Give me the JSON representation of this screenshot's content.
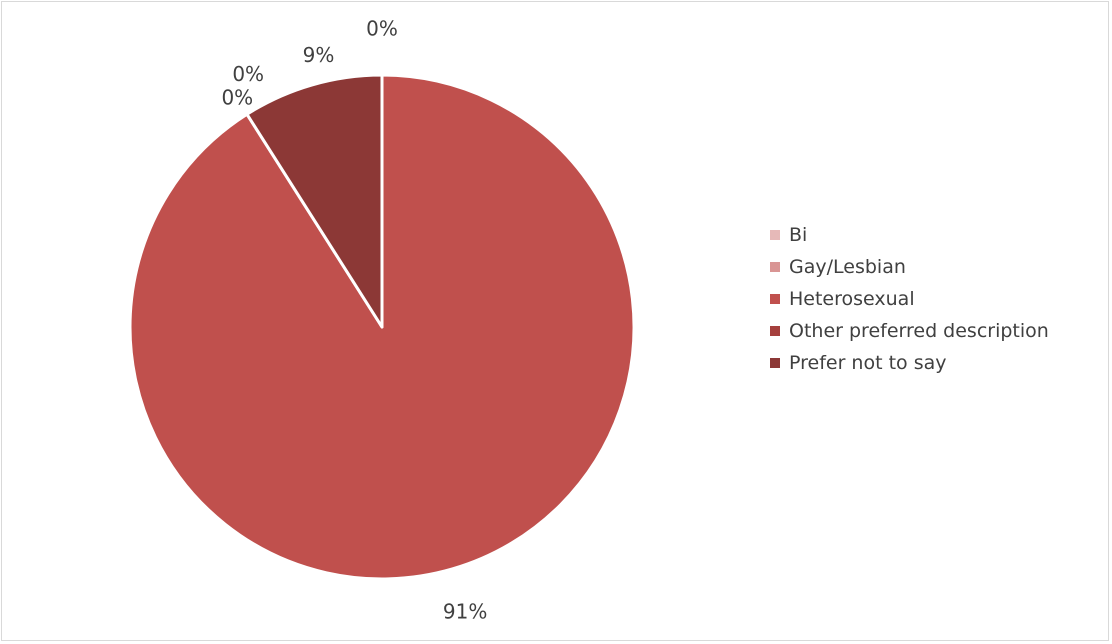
{
  "chart_data": {
    "type": "pie",
    "title": "",
    "categories": [
      "Bi",
      "Gay/Lesbian",
      "Heterosexual",
      "Other preferred description",
      "Prefer not to say"
    ],
    "values": [
      0,
      0,
      91,
      0,
      9
    ],
    "data_labels": [
      "0%",
      "0%",
      "91%",
      "0%",
      "9%"
    ],
    "colors": [
      "#e6b9b8",
      "#d99594",
      "#c0504d",
      "#a5403d",
      "#8c3836"
    ],
    "legend_position": "right"
  }
}
